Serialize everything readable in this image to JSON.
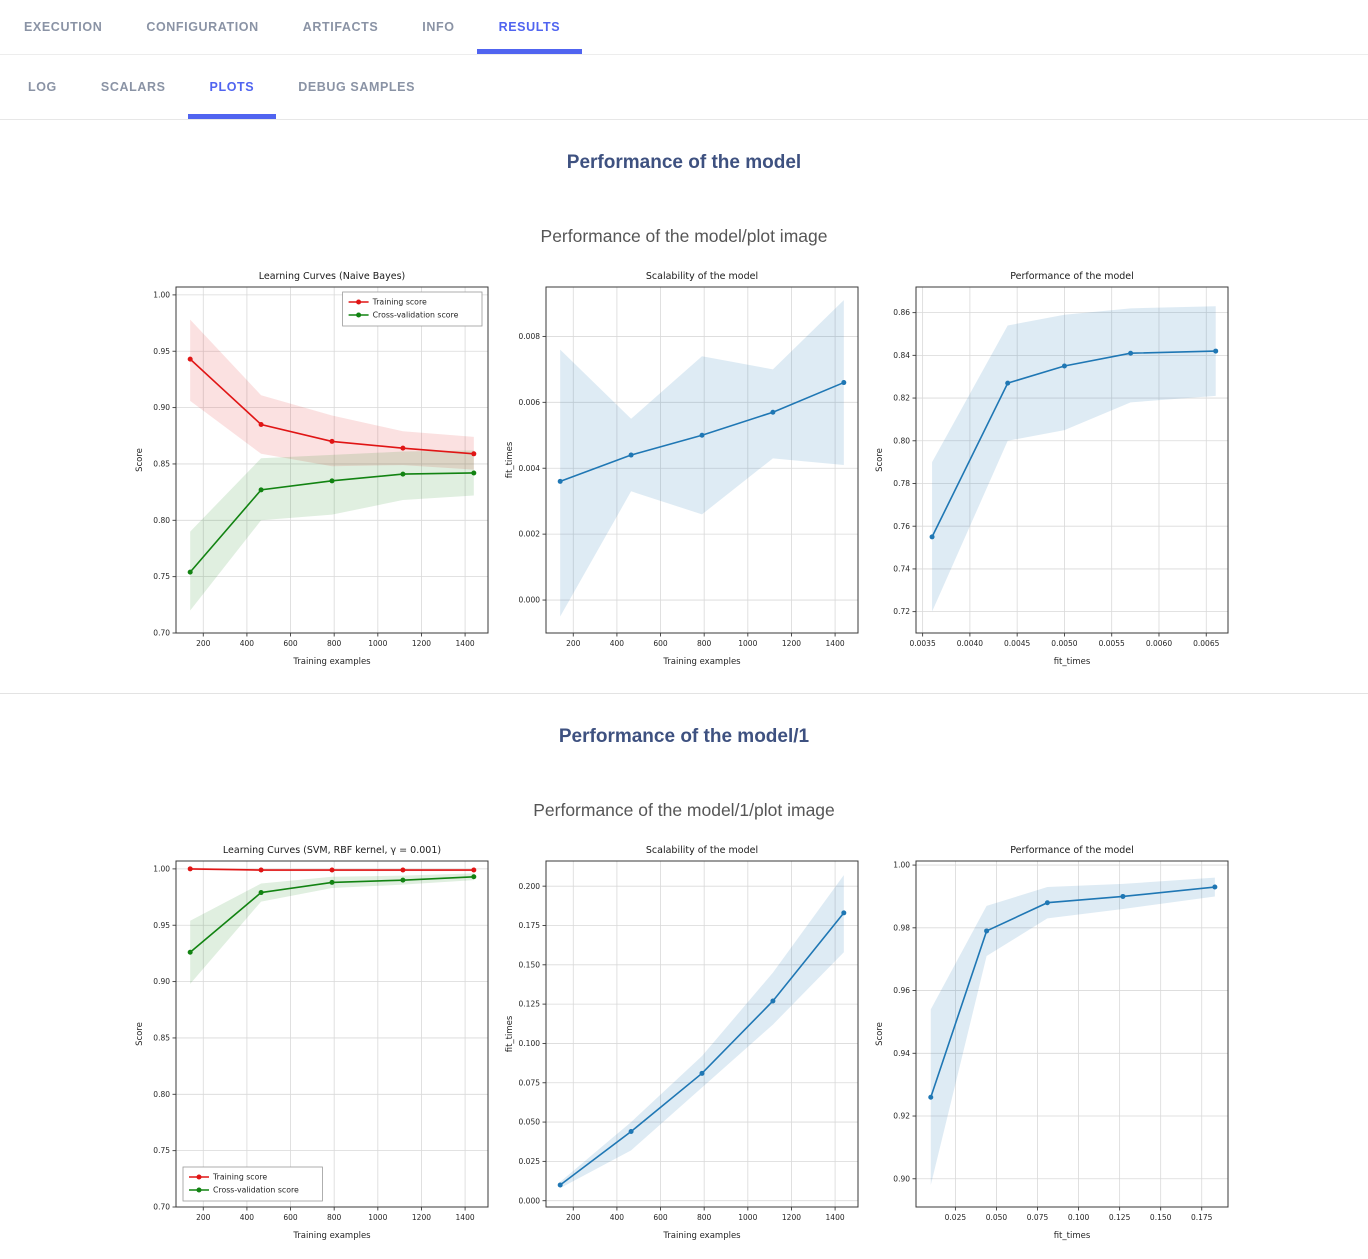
{
  "nav": {
    "tabs": [
      {
        "label": "EXECUTION",
        "active": false
      },
      {
        "label": "CONFIGURATION",
        "active": false
      },
      {
        "label": "ARTIFACTS",
        "active": false
      },
      {
        "label": "INFO",
        "active": false
      },
      {
        "label": "RESULTS",
        "active": true
      }
    ],
    "subtabs": [
      {
        "label": "LOG",
        "active": false
      },
      {
        "label": "SCALARS",
        "active": false
      },
      {
        "label": "PLOTS",
        "active": true
      },
      {
        "label": "DEBUG SAMPLES",
        "active": false
      }
    ]
  },
  "colors": {
    "accent": "#5064f0",
    "section_title": "#3e5180",
    "training_score": "#e01515",
    "cross_validation_score": "#128312",
    "single_series": "#1f77b4"
  },
  "sections": [
    {
      "title": "Performance of the model",
      "subtitle": "Performance of the model/plot image"
    },
    {
      "title": "Performance of the model/1",
      "subtitle": "Performance of the model/1/plot image"
    }
  ],
  "chart_data": [
    {
      "type": "line",
      "title": "Learning Curves (Naive Bayes)",
      "xlabel": "Training examples",
      "ylabel": "Score",
      "xlim": [
        75,
        1505
      ],
      "ylim": [
        0.7,
        1.007
      ],
      "xticks": [
        200,
        400,
        600,
        800,
        1000,
        1200,
        1400
      ],
      "yticks": [
        0.7,
        0.75,
        0.8,
        0.85,
        0.9,
        0.95,
        1.0
      ],
      "xdec": 0,
      "ydec": 2,
      "legend": "top-right",
      "series": [
        {
          "name": "Training score",
          "color": "#e01515",
          "band_opacity": 0.13,
          "x": [
            140,
            465,
            790,
            1115,
            1440
          ],
          "y": [
            0.943,
            0.885,
            0.87,
            0.864,
            0.859
          ],
          "lower": [
            0.906,
            0.859,
            0.848,
            0.849,
            0.845
          ],
          "upper": [
            0.978,
            0.911,
            0.893,
            0.879,
            0.874
          ]
        },
        {
          "name": "Cross-validation score",
          "color": "#128312",
          "band_opacity": 0.13,
          "x": [
            140,
            465,
            790,
            1115,
            1440
          ],
          "y": [
            0.754,
            0.827,
            0.835,
            0.841,
            0.842
          ],
          "lower": [
            0.72,
            0.8,
            0.805,
            0.818,
            0.822
          ],
          "upper": [
            0.79,
            0.855,
            0.858,
            0.861,
            0.862
          ]
        }
      ]
    },
    {
      "type": "line",
      "title": "Scalability of the model",
      "xlabel": "Training examples",
      "ylabel": "fit_times",
      "xlim": [
        75,
        1505
      ],
      "ylim": [
        -0.001,
        0.0095
      ],
      "xticks": [
        200,
        400,
        600,
        800,
        1000,
        1200,
        1400
      ],
      "yticks": [
        0.0,
        0.002,
        0.004,
        0.006,
        0.008
      ],
      "xdec": 0,
      "ydec": 3,
      "legend": null,
      "series": [
        {
          "name": null,
          "color": "#1f77b4",
          "band_opacity": 0.15,
          "x": [
            140,
            465,
            790,
            1115,
            1440
          ],
          "y": [
            0.0036,
            0.0044,
            0.005,
            0.0057,
            0.0066
          ],
          "lower": [
            -0.0005,
            0.0033,
            0.0026,
            0.0043,
            0.0041
          ],
          "upper": [
            0.0076,
            0.0055,
            0.0074,
            0.007,
            0.0091
          ]
        }
      ]
    },
    {
      "type": "line",
      "title": "Performance of the model",
      "xlabel": "fit_times",
      "ylabel": "Score",
      "xlim": [
        0.00343,
        0.00673
      ],
      "ylim": [
        0.71,
        0.872
      ],
      "xticks": [
        0.0035,
        0.004,
        0.0045,
        0.005,
        0.0055,
        0.006,
        0.0065
      ],
      "yticks": [
        0.72,
        0.74,
        0.76,
        0.78,
        0.8,
        0.82,
        0.84,
        0.86
      ],
      "xdec": 4,
      "ydec": 2,
      "legend": null,
      "series": [
        {
          "name": null,
          "color": "#1f77b4",
          "band_opacity": 0.15,
          "x": [
            0.0036,
            0.0044,
            0.005,
            0.0057,
            0.0066
          ],
          "y": [
            0.755,
            0.827,
            0.835,
            0.841,
            0.842
          ],
          "lower": [
            0.72,
            0.8,
            0.805,
            0.818,
            0.821
          ],
          "upper": [
            0.79,
            0.854,
            0.859,
            0.862,
            0.863
          ]
        }
      ]
    },
    {
      "type": "line",
      "title": "Learning Curves (SVM, RBF kernel, γ = 0.001)",
      "xlabel": "Training examples",
      "ylabel": "Score",
      "xlim": [
        75,
        1505
      ],
      "ylim": [
        0.7,
        1.007
      ],
      "xticks": [
        200,
        400,
        600,
        800,
        1000,
        1200,
        1400
      ],
      "yticks": [
        0.7,
        0.75,
        0.8,
        0.85,
        0.9,
        0.95,
        1.0
      ],
      "xdec": 0,
      "ydec": 2,
      "legend": "bottom-left",
      "series": [
        {
          "name": "Training score",
          "color": "#e01515",
          "band_opacity": 0.13,
          "x": [
            140,
            465,
            790,
            1115,
            1440
          ],
          "y": [
            1.0,
            0.999,
            0.999,
            0.999,
            0.999
          ],
          "lower": [
            0.999,
            0.998,
            0.998,
            0.998,
            0.998
          ],
          "upper": [
            1.001,
            1.0,
            1.0,
            1.0,
            1.0
          ]
        },
        {
          "name": "Cross-validation score",
          "color": "#128312",
          "band_opacity": 0.13,
          "x": [
            140,
            465,
            790,
            1115,
            1440
          ],
          "y": [
            0.926,
            0.979,
            0.988,
            0.99,
            0.993
          ],
          "lower": [
            0.898,
            0.971,
            0.983,
            0.986,
            0.99
          ],
          "upper": [
            0.954,
            0.987,
            0.993,
            0.994,
            0.996
          ]
        }
      ]
    },
    {
      "type": "line",
      "title": "Scalability of the model",
      "xlabel": "Training examples",
      "ylabel": "fit_times",
      "xlim": [
        75,
        1505
      ],
      "ylim": [
        -0.004,
        0.216
      ],
      "xticks": [
        200,
        400,
        600,
        800,
        1000,
        1200,
        1400
      ],
      "yticks": [
        0.0,
        0.025,
        0.05,
        0.075,
        0.1,
        0.125,
        0.15,
        0.175,
        0.2
      ],
      "xdec": 0,
      "ydec": 3,
      "legend": null,
      "series": [
        {
          "name": null,
          "color": "#1f77b4",
          "band_opacity": 0.15,
          "x": [
            140,
            465,
            790,
            1115,
            1440
          ],
          "y": [
            0.01,
            0.044,
            0.081,
            0.127,
            0.183
          ],
          "lower": [
            0.008,
            0.032,
            0.072,
            0.112,
            0.158
          ],
          "upper": [
            0.012,
            0.05,
            0.092,
            0.145,
            0.207
          ]
        }
      ]
    },
    {
      "type": "line",
      "title": "Performance of the model",
      "xlabel": "fit_times",
      "ylabel": "Score",
      "xlim": [
        0.001,
        0.191
      ],
      "ylim": [
        0.891,
        1.0013
      ],
      "xticks": [
        0.025,
        0.05,
        0.075,
        0.1,
        0.125,
        0.15,
        0.175
      ],
      "yticks": [
        0.9,
        0.92,
        0.94,
        0.96,
        0.98,
        1.0
      ],
      "xdec": 3,
      "ydec": 2,
      "legend": null,
      "series": [
        {
          "name": null,
          "color": "#1f77b4",
          "band_opacity": 0.15,
          "x": [
            0.01,
            0.044,
            0.081,
            0.127,
            0.183
          ],
          "y": [
            0.926,
            0.979,
            0.988,
            0.99,
            0.993
          ],
          "lower": [
            0.898,
            0.971,
            0.983,
            0.986,
            0.99
          ],
          "upper": [
            0.954,
            0.987,
            0.993,
            0.994,
            0.996
          ]
        }
      ]
    }
  ]
}
